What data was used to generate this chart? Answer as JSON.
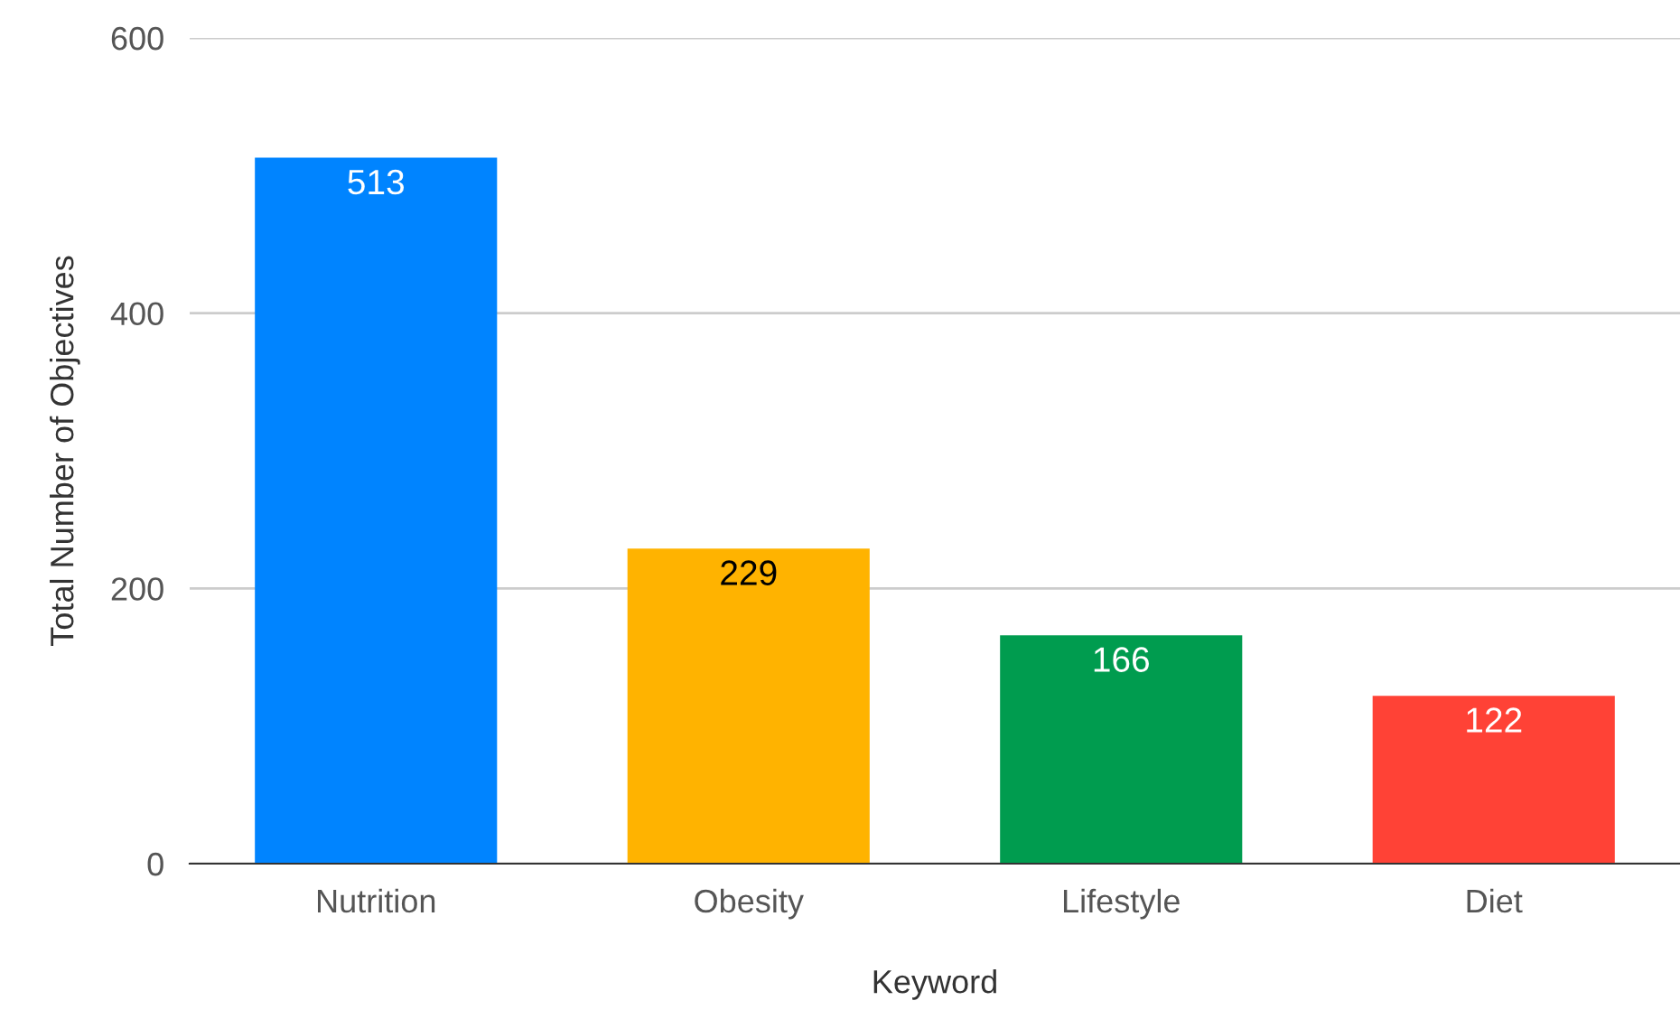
{
  "chart_data": {
    "type": "bar",
    "xlabel": "Keyword",
    "ylabel": "Total Number of Objectives",
    "categories": [
      "Nutrition",
      "Obesity",
      "Lifestyle",
      "Diet"
    ],
    "values": [
      513,
      229,
      166,
      122
    ],
    "colors": [
      "#0084ff",
      "#ffb300",
      "#009c4f",
      "#ff4236"
    ],
    "ylim": [
      0,
      600
    ],
    "yticks": [
      0,
      200,
      400,
      600
    ],
    "grid": "y",
    "data_labels": true,
    "legend": false
  }
}
